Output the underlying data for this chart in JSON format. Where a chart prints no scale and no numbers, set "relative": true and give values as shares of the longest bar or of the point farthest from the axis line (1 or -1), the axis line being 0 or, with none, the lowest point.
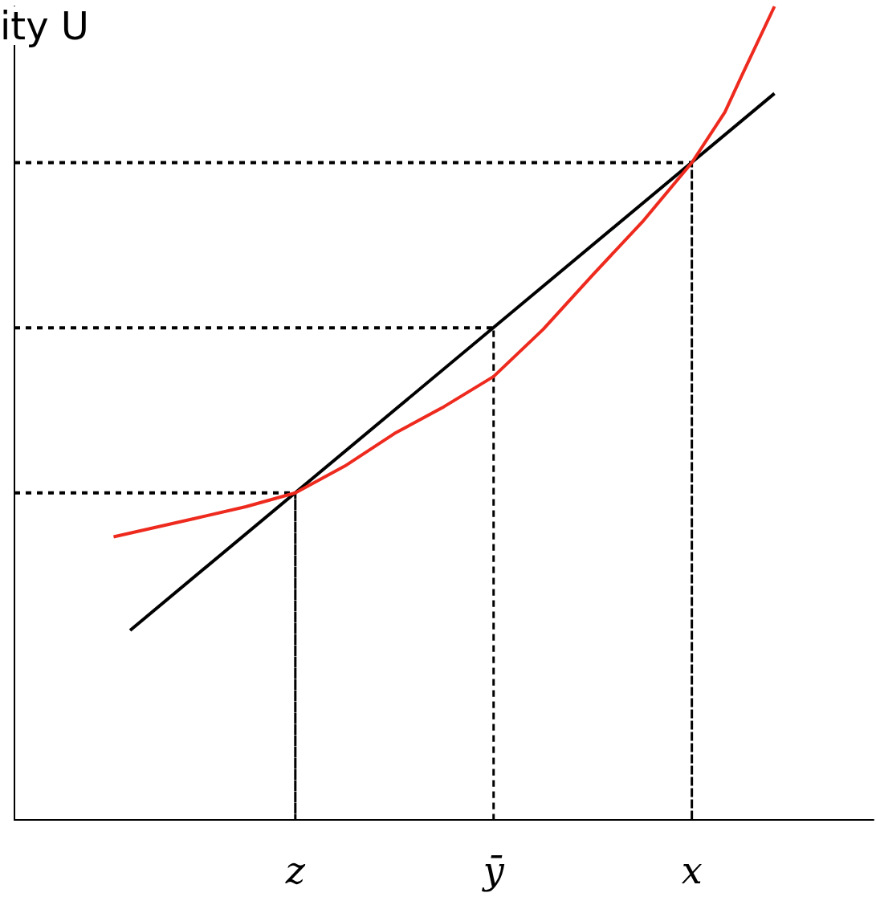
{
  "chart_data": {
    "type": "line",
    "relative": true,
    "ylabel": "ity U",
    "grid": false,
    "marker": "none",
    "line_style": "solid",
    "categories": [
      null,
      null,
      null,
      null,
      null,
      null,
      null,
      null,
      null,
      null,
      null,
      null,
      null,
      null,
      null,
      null,
      null,
      "z",
      null,
      null,
      null,
      null,
      null,
      null,
      null,
      null,
      null,
      null,
      null,
      "ȳ",
      null,
      null,
      null,
      null,
      null,
      null,
      null,
      null,
      null,
      null,
      null,
      "x",
      null,
      null,
      null,
      null,
      null,
      null,
      null,
      null,
      null,
      null,
      null
    ],
    "series": [
      {
        "color": "#000000",
        "values": [
          null,
          null,
          null,
          null,
          null,
          null,
          null,
          0.233,
          null,
          null,
          null,
          null,
          null,
          null,
          null,
          null,
          null,
          null,
          null,
          null,
          null,
          null,
          null,
          null,
          null,
          null,
          null,
          null,
          null,
          null,
          null,
          null,
          null,
          null,
          null,
          null,
          null,
          null,
          null,
          null,
          null,
          null,
          null,
          null,
          null,
          null,
          0.893,
          null,
          null,
          null,
          null,
          null,
          null
        ]
      },
      {
        "color": "#ee2a1e",
        "values": [
          null,
          null,
          null,
          null,
          null,
          null,
          0.348,
          null,
          null,
          null,
          null,
          0.371,
          null,
          null,
          0.385,
          null,
          null,
          0.402,
          null,
          null,
          0.435,
          null,
          null,
          0.475,
          null,
          null,
          0.508,
          null,
          null,
          0.545,
          null,
          null,
          0.603,
          null,
          null,
          0.67,
          null,
          null,
          0.735,
          null,
          null,
          0.808,
          null,
          0.87,
          0.914,
          null,
          1,
          null,
          null,
          null,
          null,
          null,
          null
        ]
      },
      {
        "color": "#000000",
        "line_style": "dashed",
        "values": [
          0.402,
          null,
          null,
          null,
          null,
          null,
          null,
          null,
          null,
          null,
          null,
          null,
          null,
          null,
          null,
          null,
          null,
          0.402,
          null,
          null,
          null,
          null,
          null,
          null,
          null,
          null,
          null,
          null,
          null,
          null,
          null,
          null,
          null,
          null,
          null,
          null,
          null,
          null,
          null,
          null,
          null,
          null,
          null,
          null,
          null,
          null,
          null,
          null,
          null,
          null,
          null,
          null,
          null
        ]
      },
      {
        "color": "#000000",
        "line_style": "dashed",
        "values": [
          0.605,
          null,
          null,
          null,
          null,
          null,
          null,
          null,
          null,
          null,
          null,
          null,
          null,
          null,
          null,
          null,
          null,
          null,
          null,
          null,
          null,
          null,
          null,
          null,
          null,
          null,
          null,
          null,
          null,
          0.605,
          null,
          null,
          null,
          null,
          null,
          null,
          null,
          null,
          null,
          null,
          null,
          null,
          null,
          null,
          null,
          null,
          null,
          null,
          null,
          null,
          null,
          null,
          null
        ]
      },
      {
        "color": "#000000",
        "line_style": "dashed",
        "values": [
          0.808,
          null,
          null,
          null,
          null,
          null,
          null,
          null,
          null,
          null,
          null,
          null,
          null,
          null,
          null,
          null,
          null,
          null,
          null,
          null,
          null,
          null,
          null,
          null,
          null,
          null,
          null,
          null,
          null,
          null,
          null,
          null,
          null,
          null,
          null,
          null,
          null,
          null,
          null,
          null,
          null,
          0.808,
          null,
          null,
          null,
          null,
          null,
          null,
          null,
          null,
          null,
          null,
          null
        ]
      },
      {
        "type": "bar",
        "color": "#000000",
        "line_style": "dashed",
        "values": [
          null,
          null,
          null,
          null,
          null,
          null,
          null,
          null,
          null,
          null,
          null,
          null,
          null,
          null,
          null,
          null,
          null,
          0.402,
          null,
          null,
          null,
          null,
          null,
          null,
          null,
          null,
          null,
          null,
          null,
          0.605,
          null,
          null,
          null,
          null,
          null,
          null,
          null,
          null,
          null,
          null,
          null,
          0.808,
          null,
          null,
          null,
          null,
          null,
          null,
          null,
          null,
          null,
          null,
          null
        ]
      }
    ]
  }
}
